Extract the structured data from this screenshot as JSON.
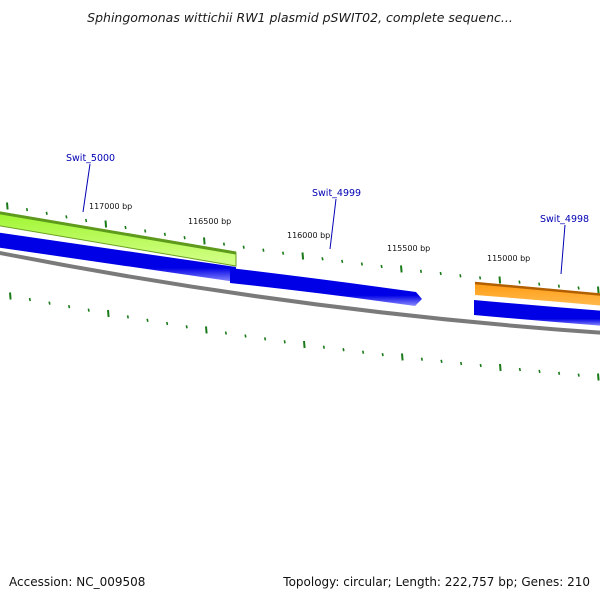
{
  "title": "Sphingomonas wittichii RW1 plasmid pSWIT02, complete sequenc...",
  "footer": {
    "accession": "Accession: NC_009508",
    "summary": "Topology: circular; Length: 222,757 bp; Genes: 210"
  },
  "ticks": [
    "117000 bp",
    "116500 bp",
    "116000 bp",
    "115500 bp",
    "115000 bp"
  ],
  "genes": [
    {
      "id": "g5000",
      "label": "Swit_5000"
    },
    {
      "id": "g4999",
      "label": "Swit_4999"
    },
    {
      "id": "g4998",
      "label": "Swit_4998"
    }
  ],
  "colors": {
    "backbone": "#808080",
    "cds": "#0000e6",
    "cds_light": "#6e6eff",
    "feature_green": "#b3ff4d",
    "feature_green_edge": "#6aa022",
    "feature_orange": "#ff9900",
    "feature_orange_edge": "#b25f00",
    "tick": "#1a7a1a",
    "label": "#0000b4"
  }
}
